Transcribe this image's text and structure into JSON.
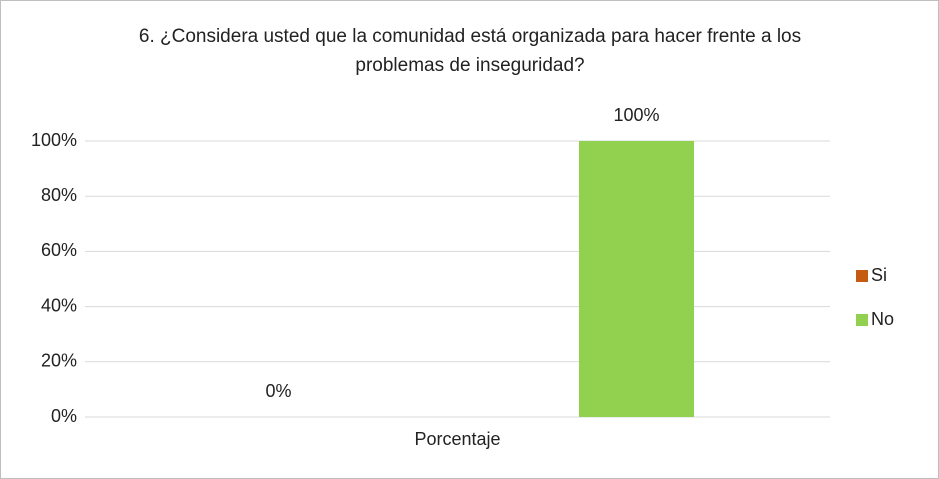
{
  "chart_data": {
    "type": "bar",
    "title": "6. ¿Considera usted que la comunidad está organizada para hacer frente a los problemas de inseguridad?",
    "categories": [
      "Porcentaje"
    ],
    "series": [
      {
        "name": "Si",
        "color": "#c55a11",
        "values": [
          0
        ],
        "value_labels": [
          "0%"
        ]
      },
      {
        "name": "No",
        "color": "#92d050",
        "values": [
          100
        ],
        "value_labels": [
          "100%"
        ]
      }
    ],
    "ylim": [
      0,
      100
    ],
    "yticks": [
      {
        "value": 0,
        "label": "0%"
      },
      {
        "value": 20,
        "label": "20%"
      },
      {
        "value": 40,
        "label": "40%"
      },
      {
        "value": 60,
        "label": "60%"
      },
      {
        "value": 80,
        "label": "80%"
      },
      {
        "value": 100,
        "label": "100%"
      }
    ],
    "grid": true,
    "legend": "right"
  }
}
